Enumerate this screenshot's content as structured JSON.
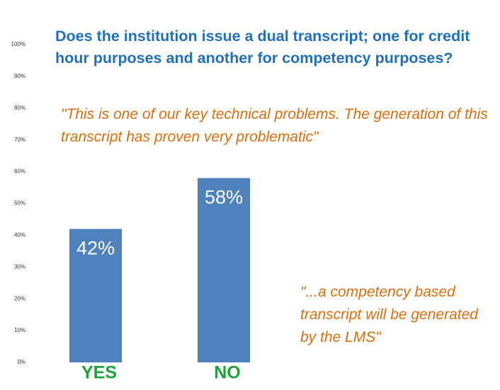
{
  "chart_data": {
    "type": "bar",
    "title": "Does the institution issue a dual transcript; one for credit hour purposes and another for competency purposes?",
    "annotations": [
      "\"This is one of our key technical problems.  The generation of this transcript has proven very problematic\"",
      "\"...a competency based transcript will be generated by the LMS\""
    ],
    "categories": [
      "YES",
      "NO"
    ],
    "values": [
      42,
      58
    ],
    "value_labels": [
      "42%",
      "58%"
    ],
    "color": "#4f81bd",
    "ylim": [
      0,
      100
    ],
    "yticks": [
      {
        "value": 0,
        "label": "0%"
      },
      {
        "value": 10,
        "label": "10%"
      },
      {
        "value": 20,
        "label": "20%"
      },
      {
        "value": 30,
        "label": "30%"
      },
      {
        "value": 40,
        "label": "40%"
      },
      {
        "value": 50,
        "label": "50%"
      },
      {
        "value": 60,
        "label": "60%"
      },
      {
        "value": 70,
        "label": "70%"
      },
      {
        "value": 80,
        "label": "80%"
      },
      {
        "value": 90,
        "label": "90%"
      },
      {
        "value": 100,
        "label": "100%"
      }
    ],
    "grid": false
  }
}
